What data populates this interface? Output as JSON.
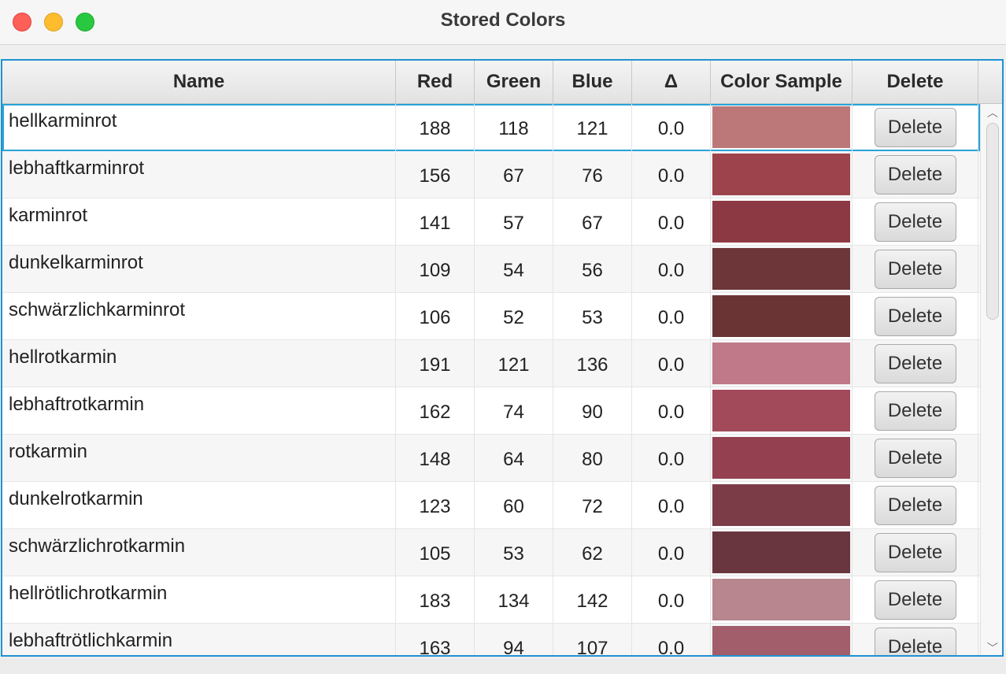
{
  "window": {
    "title": "Stored Colors"
  },
  "table": {
    "columns": [
      "Name",
      "Red",
      "Green",
      "Blue",
      "Δ",
      "Color Sample",
      "Delete"
    ],
    "rows": [
      {
        "name": "hellkarminrot",
        "red": "188",
        "green": "118",
        "blue": "121",
        "delta": "0.0",
        "color": "#bc7879",
        "action": "Delete"
      },
      {
        "name": "lebhaftkarminrot",
        "red": "156",
        "green": "67",
        "blue": "76",
        "delta": "0.0",
        "color": "#9c434c",
        "action": "Delete"
      },
      {
        "name": "karminrot",
        "red": "141",
        "green": "57",
        "blue": "67",
        "delta": "0.0",
        "color": "#8d3943",
        "action": "Delete"
      },
      {
        "name": "dunkelkarminrot",
        "red": "109",
        "green": "54",
        "blue": "56",
        "delta": "0.0",
        "color": "#6d3638",
        "action": "Delete"
      },
      {
        "name": "schwärzlichkarminrot",
        "red": "106",
        "green": "52",
        "blue": "53",
        "delta": "0.0",
        "color": "#6a3435",
        "action": "Delete"
      },
      {
        "name": "hellrotkarmin",
        "red": "191",
        "green": "121",
        "blue": "136",
        "delta": "0.0",
        "color": "#bf7988",
        "action": "Delete"
      },
      {
        "name": "lebhaftrotkarmin",
        "red": "162",
        "green": "74",
        "blue": "90",
        "delta": "0.0",
        "color": "#a24a5a",
        "action": "Delete"
      },
      {
        "name": "rotkarmin",
        "red": "148",
        "green": "64",
        "blue": "80",
        "delta": "0.0",
        "color": "#944050",
        "action": "Delete"
      },
      {
        "name": "dunkelrotkarmin",
        "red": "123",
        "green": "60",
        "blue": "72",
        "delta": "0.0",
        "color": "#7b3c48",
        "action": "Delete"
      },
      {
        "name": "schwärzlichrotkarmin",
        "red": "105",
        "green": "53",
        "blue": "62",
        "delta": "0.0",
        "color": "#69353e",
        "action": "Delete"
      },
      {
        "name": "hellrötlichrotkarmin",
        "red": "183",
        "green": "134",
        "blue": "142",
        "delta": "0.0",
        "color": "#b7868e",
        "action": "Delete"
      },
      {
        "name": "lebhaftrötlichkarmin",
        "red": "163",
        "green": "94",
        "blue": "107",
        "delta": "0.0",
        "color": "#a35e6b",
        "action": "Delete"
      }
    ]
  },
  "icons": {
    "scroll_up": "chevron-up-icon",
    "scroll_down": "chevron-down-icon"
  }
}
